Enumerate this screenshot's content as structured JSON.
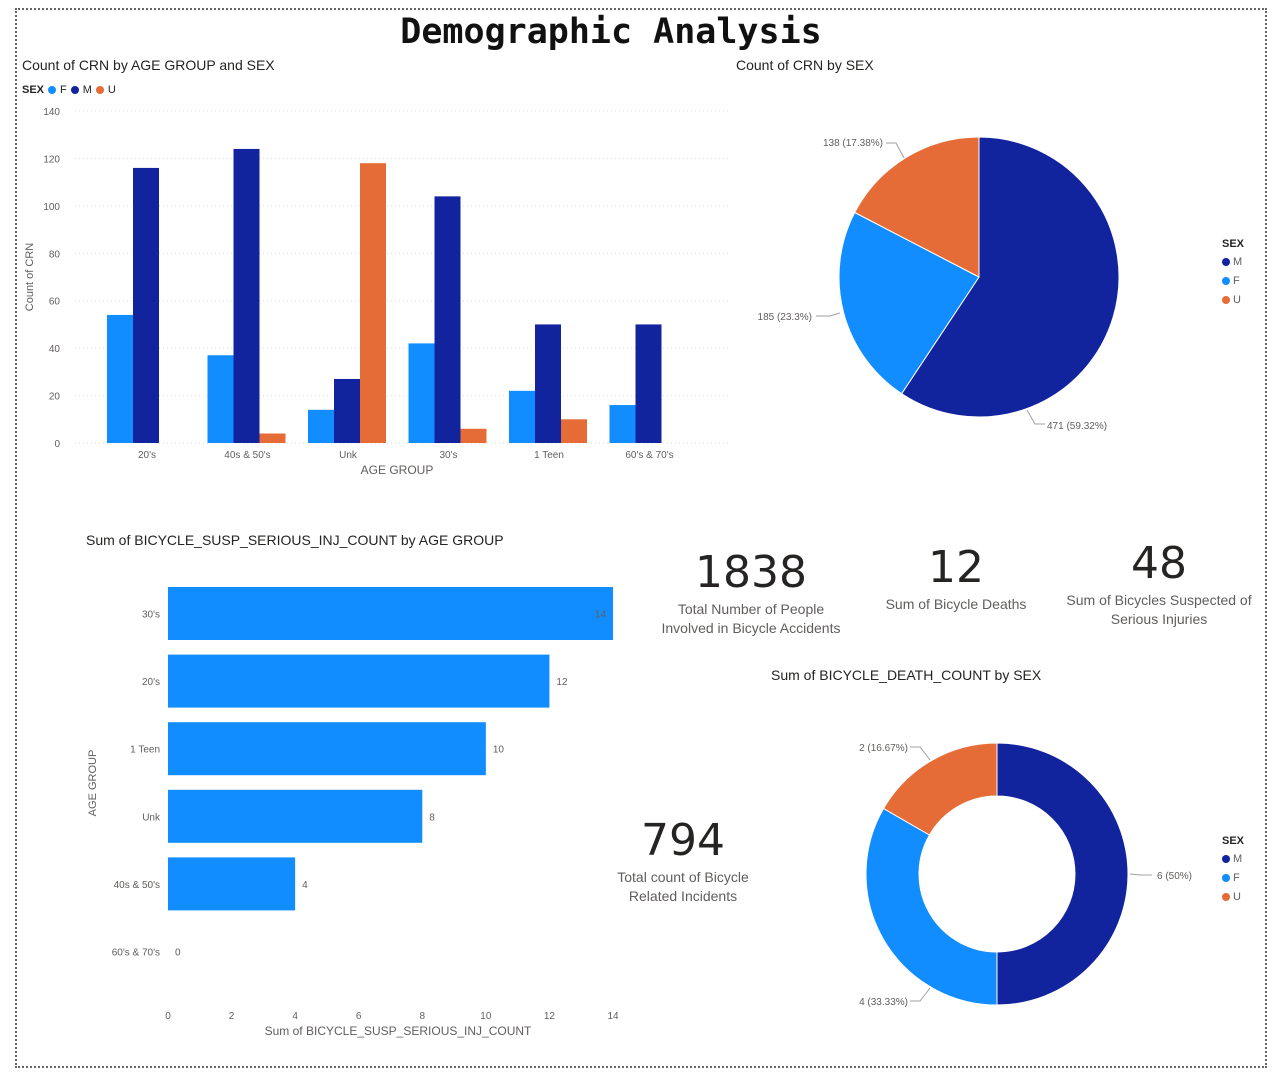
{
  "page_title": "Demographic Analysis",
  "colors": {
    "F": "#118DFF",
    "M": "#12239E",
    "U": "#E66C37",
    "grid": "#e6e6e6"
  },
  "chart_data": [
    {
      "id": "age_sex_bar",
      "type": "bar",
      "title": "Count of CRN by AGE GROUP and SEX",
      "xlabel": "AGE GROUP",
      "ylabel": "Count of CRN",
      "legend_title": "SEX",
      "legend_placement": "top-left",
      "categories": [
        "20's",
        "40s & 50's",
        "Unk",
        "30's",
        "1 Teen",
        "60's & 70's"
      ],
      "series": [
        {
          "name": "F",
          "values": [
            54,
            37,
            14,
            42,
            22,
            16
          ]
        },
        {
          "name": "M",
          "values": [
            116,
            124,
            27,
            104,
            50,
            50
          ]
        },
        {
          "name": "U",
          "values": [
            null,
            4,
            118,
            6,
            10,
            null
          ]
        }
      ],
      "yticks": [
        0,
        20,
        40,
        60,
        80,
        100,
        120,
        140
      ],
      "ylim": [
        0,
        140
      ],
      "grid": true
    },
    {
      "id": "crn_sex_pie",
      "type": "pie",
      "title": "Count of CRN by SEX",
      "legend_title": "SEX",
      "legend_placement": "right",
      "slices": [
        {
          "name": "M",
          "value": 471,
          "label": "471 (59.32%)"
        },
        {
          "name": "F",
          "value": 185,
          "label": "185 (23.3%)"
        },
        {
          "name": "U",
          "value": 138,
          "label": "138 (17.38%)"
        }
      ]
    },
    {
      "id": "serious_inj_hbar",
      "type": "bar",
      "orientation": "horizontal",
      "title": "Sum of BICYCLE_SUSP_SERIOUS_INJ_COUNT by AGE GROUP",
      "xlabel": "Sum of BICYCLE_SUSP_SERIOUS_INJ_COUNT",
      "ylabel": "AGE GROUP",
      "categories": [
        "30's",
        "20's",
        "1 Teen",
        "Unk",
        "40s & 50's",
        "60's & 70's"
      ],
      "values": [
        14,
        12,
        10,
        8,
        4,
        0
      ],
      "xticks": [
        0,
        2,
        4,
        6,
        8,
        10,
        12,
        14
      ],
      "xlim": [
        0,
        14
      ]
    },
    {
      "id": "death_sex_donut",
      "type": "pie",
      "style": "donut",
      "title": "Sum of BICYCLE_DEATH_COUNT by SEX",
      "legend_title": "SEX",
      "legend_placement": "right",
      "slices": [
        {
          "name": "M",
          "value": 6,
          "label": "6 (50%)"
        },
        {
          "name": "F",
          "value": 4,
          "label": "4 (33.33%)"
        },
        {
          "name": "U",
          "value": 2,
          "label": "2 (16.67%)"
        }
      ]
    }
  ],
  "kpis": [
    {
      "value": "1838",
      "label_line1": "Total Number of People",
      "label_line2": "Involved in Bicycle Accidents"
    },
    {
      "value": "12",
      "label_line1": "Sum of Bicycle Deaths",
      "label_line2": ""
    },
    {
      "value": "48",
      "label_line1": "Sum of Bicycles Suspected of",
      "label_line2": "Serious Injuries"
    },
    {
      "value": "794",
      "label_line1": "Total count of Bicycle",
      "label_line2": "Related Incidents"
    }
  ]
}
